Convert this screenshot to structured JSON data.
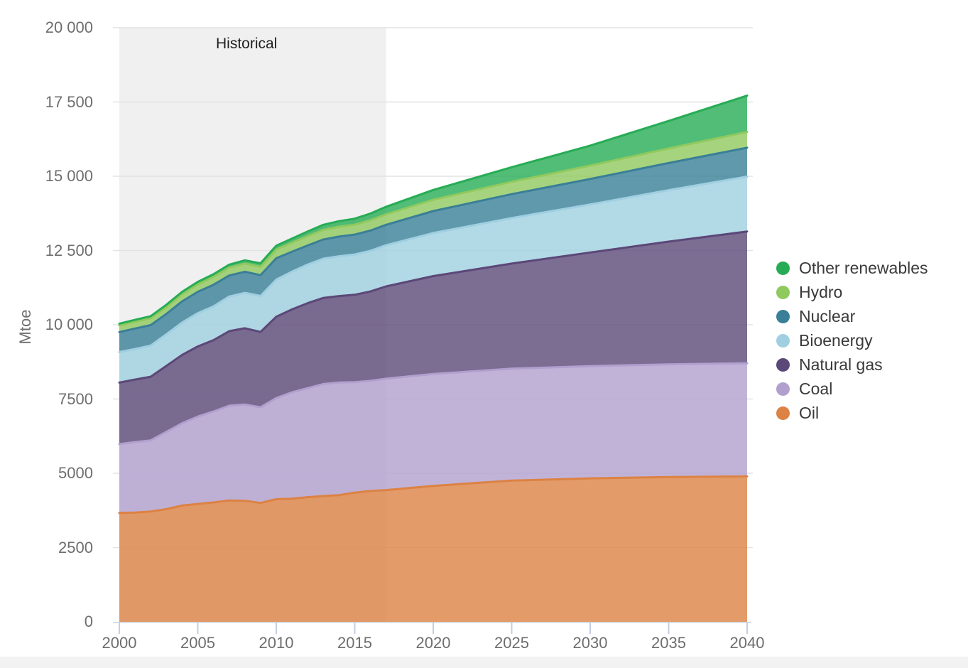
{
  "page": {
    "background": "#ffffff",
    "footer_strip_color": "#f2f2f2"
  },
  "chart_data": {
    "type": "area",
    "stacked": true,
    "title": "",
    "xlabel": "",
    "ylabel": "Mtoe",
    "unit": "Mtoe",
    "ylim": [
      0,
      20000
    ],
    "ytick_step": 2500,
    "grid": true,
    "legend_position": "right",
    "yticks": [
      {
        "value": 0,
        "label": "0"
      },
      {
        "value": 2500,
        "label": "2500"
      },
      {
        "value": 5000,
        "label": "5000"
      },
      {
        "value": 7500,
        "label": "7500"
      },
      {
        "value": 10000,
        "label": "10 000"
      },
      {
        "value": 12500,
        "label": "12 500"
      },
      {
        "value": 15000,
        "label": "15 000"
      },
      {
        "value": 17500,
        "label": "17 500"
      },
      {
        "value": 20000,
        "label": "20 000"
      }
    ],
    "xtick_years": [
      2000,
      2005,
      2010,
      2015,
      2020,
      2025,
      2030,
      2035,
      2040
    ],
    "years": [
      2000,
      2001,
      2002,
      2003,
      2004,
      2005,
      2006,
      2007,
      2008,
      2009,
      2010,
      2011,
      2012,
      2013,
      2014,
      2015,
      2016,
      2017,
      2020,
      2025,
      2030,
      2035,
      2040
    ],
    "series": [
      {
        "name": "Oil",
        "color": "#DC8243",
        "values": [
          3665,
          3680,
          3712,
          3794,
          3914,
          3970,
          4020,
          4085,
          4073,
          4003,
          4130,
          4146,
          4197,
          4234,
          4266,
          4350,
          4405,
          4435,
          4577,
          4754,
          4830,
          4875,
          4894
        ]
      },
      {
        "name": "Coal",
        "color": "#B1A0CE",
        "values": [
          2316,
          2370,
          2395,
          2600,
          2770,
          2940,
          3060,
          3190,
          3240,
          3220,
          3400,
          3580,
          3670,
          3770,
          3790,
          3720,
          3706,
          3750,
          3765,
          3768,
          3775,
          3793,
          3809
        ]
      },
      {
        "name": "Natural gas",
        "color": "#5B4878",
        "values": [
          2071,
          2105,
          2145,
          2220,
          2300,
          2360,
          2400,
          2510,
          2570,
          2535,
          2740,
          2790,
          2860,
          2900,
          2910,
          2940,
          3010,
          3107,
          3296,
          3539,
          3829,
          4132,
          4436
        ]
      },
      {
        "name": "Bioenergy",
        "color": "#9FCFE0",
        "values": [
          1026,
          1030,
          1045,
          1065,
          1090,
          1120,
          1140,
          1165,
          1190,
          1210,
          1250,
          1270,
          1300,
          1320,
          1340,
          1355,
          1370,
          1386,
          1450,
          1532,
          1616,
          1730,
          1850
        ]
      },
      {
        "name": "Nuclear",
        "color": "#3A7F97",
        "values": [
          675,
          688,
          692,
          687,
          714,
          721,
          728,
          709,
          712,
          703,
          719,
          674,
          642,
          646,
          662,
          670,
          680,
          688,
          740,
          805,
          857,
          915,
          971
        ]
      },
      {
        "name": "Hydro",
        "color": "#90C95E",
        "values": [
          225,
          228,
          232,
          235,
          242,
          251,
          261,
          265,
          276,
          280,
          296,
          302,
          316,
          326,
          334,
          336,
          349,
          353,
          380,
          415,
          452,
          491,
          531
        ]
      },
      {
        "name": "Other renewables",
        "color": "#27AC55",
        "values": [
          60,
          64,
          68,
          73,
          78,
          83,
          92,
          100,
          110,
          118,
          127,
          140,
          155,
          170,
          185,
          200,
          225,
          254,
          330,
          490,
          672,
          925,
          1223
        ]
      }
    ],
    "fill_opacity": 0.8,
    "annotation_region": {
      "label": "Historical",
      "year_start": 2000,
      "year_end": 2017,
      "fill": "#f0f0f0",
      "label_color": "#1f1f1f"
    },
    "legend": {
      "items_top_to_bottom": [
        "Other renewables",
        "Hydro",
        "Nuclear",
        "Bioenergy",
        "Natural gas",
        "Coal",
        "Oil"
      ]
    },
    "axis": {
      "label_color": "#6e6e6e",
      "grid_color": "#e3e3e3",
      "axis_line_color": "#cdd3dc",
      "tick_color": "#c3cde2"
    }
  }
}
